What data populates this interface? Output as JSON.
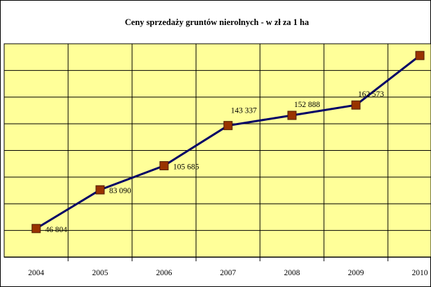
{
  "chart_data": {
    "type": "line",
    "title": "Ceny sprzedaży gruntów nierolnych - w zł za 1 ha",
    "categories": [
      "2004",
      "2005",
      "2006",
      "2007",
      "2008",
      "2009",
      "2010"
    ],
    "series": [
      {
        "values": [
          46804,
          83090,
          105685,
          143337,
          152888,
          162573,
          209000
        ],
        "labels": [
          "46 804",
          "83 090",
          "105 685",
          "143 337",
          "152 888",
          "162 573",
          ""
        ]
      }
    ],
    "xlabel": "",
    "ylabel": "",
    "ylim": [
      20000,
      220000
    ],
    "grid": true,
    "colors": {
      "plot_background": "#ffff99",
      "grid": "#000000",
      "line": "#000066",
      "marker": "#993300",
      "marker_edge": "#4d1a00"
    }
  }
}
